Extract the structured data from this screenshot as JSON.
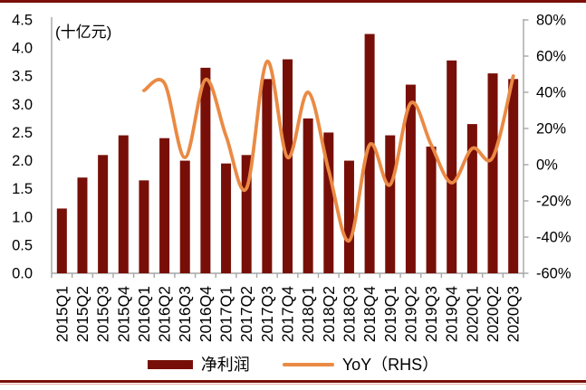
{
  "unit_label": "(十亿元)",
  "legend": {
    "series1_label": "净利润",
    "series2_label": "YoY（RHS）"
  },
  "colors": {
    "bar": "#770F08",
    "line": "#EA8A44",
    "axis": "#A6A6A6",
    "text": "#000000",
    "border": "#7A0F08",
    "border_light": "#E5ABA5"
  },
  "chart_data": {
    "type": "bar",
    "title": "",
    "unit": "(十亿元)",
    "categories": [
      "2015Q1",
      "2015Q2",
      "2015Q3",
      "2015Q4",
      "2016Q1",
      "2016Q2",
      "2016Q3",
      "2016Q4",
      "2017Q1",
      "2017Q2",
      "2017Q3",
      "2017Q4",
      "2018Q1",
      "2018Q2",
      "2018Q3",
      "2018Q4",
      "2019Q1",
      "2019Q2",
      "2019Q3",
      "2019Q4",
      "2020Q1",
      "2020Q2",
      "2020Q3"
    ],
    "series": [
      {
        "name": "净利润",
        "type": "bar",
        "axis": "left",
        "values": [
          1.15,
          1.7,
          2.1,
          2.45,
          1.65,
          2.4,
          2.0,
          3.65,
          1.95,
          2.1,
          3.45,
          3.8,
          2.75,
          2.5,
          2.0,
          4.25,
          2.45,
          3.35,
          2.25,
          3.78,
          2.65,
          3.55,
          3.45
        ]
      },
      {
        "name": "YoY（RHS）",
        "type": "line-smooth",
        "axis": "right",
        "values": [
          null,
          null,
          null,
          null,
          41,
          45,
          4,
          47,
          16,
          -13,
          57,
          4,
          40,
          -3,
          -42,
          11,
          -11,
          34,
          11,
          -10,
          9,
          4,
          49
        ]
      }
    ],
    "left_axis": {
      "min": 0,
      "max": 4.5,
      "step": 0.5,
      "ticks": [
        "4.5",
        "4.0",
        "3.5",
        "3.0",
        "2.5",
        "2.0",
        "1.5",
        "1.0",
        "0.5",
        "0.0"
      ]
    },
    "right_axis": {
      "min": -60,
      "max": 80,
      "step": 20,
      "ticks": [
        "80%",
        "60%",
        "40%",
        "20%",
        "0%",
        "-20%",
        "-40%",
        "-60%"
      ]
    },
    "grid": false,
    "legend_position": "bottom"
  }
}
